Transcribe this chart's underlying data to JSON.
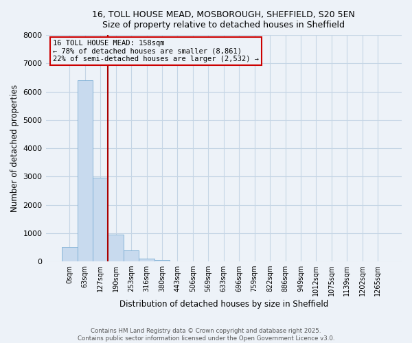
{
  "title_line1": "16, TOLL HOUSE MEAD, MOSBOROUGH, SHEFFIELD, S20 5EN",
  "title_line2": "Size of property relative to detached houses in Sheffield",
  "xlabel": "Distribution of detached houses by size in Sheffield",
  "ylabel": "Number of detached properties",
  "bin_labels": [
    "0sqm",
    "63sqm",
    "127sqm",
    "190sqm",
    "253sqm",
    "316sqm",
    "380sqm",
    "443sqm",
    "506sqm",
    "569sqm",
    "633sqm",
    "696sqm",
    "759sqm",
    "822sqm",
    "886sqm",
    "949sqm",
    "1012sqm",
    "1075sqm",
    "1139sqm",
    "1202sqm",
    "1265sqm"
  ],
  "bar_values": [
    500,
    6400,
    2950,
    950,
    400,
    100,
    50,
    0,
    0,
    0,
    0,
    0,
    0,
    0,
    0,
    0,
    0,
    0,
    0,
    0,
    0
  ],
  "bar_color": "#c8daee",
  "bar_edge_color": "#7aadd4",
  "property_line_x": 2.5,
  "property_line_color": "#aa0000",
  "annotation_text": "16 TOLL HOUSE MEAD: 158sqm\n← 78% of detached houses are smaller (8,861)\n22% of semi-detached houses are larger (2,532) →",
  "annotation_box_color": "#cc0000",
  "ylim": [
    0,
    8000
  ],
  "yticks": [
    0,
    1000,
    2000,
    3000,
    4000,
    5000,
    6000,
    7000,
    8000
  ],
  "footer_line1": "Contains HM Land Registry data © Crown copyright and database right 2025.",
  "footer_line2": "Contains public sector information licensed under the Open Government Licence v3.0.",
  "background_color": "#edf2f8",
  "grid_color": "#c5d5e5"
}
